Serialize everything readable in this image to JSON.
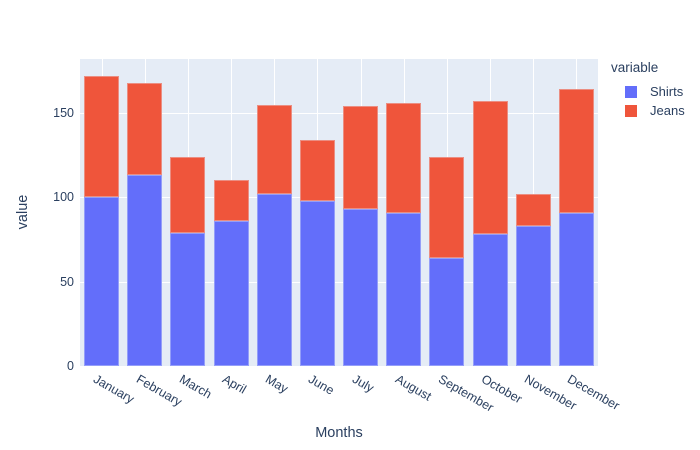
{
  "figure": {
    "paper_bgcolor": "#ffffff",
    "plot_bgcolor": "#E5ECF6",
    "grid_color": "#ffffff",
    "text_color": "#2a3f5f"
  },
  "axes": {
    "x_title": "Months",
    "y_title": "value",
    "y_ticks": [
      0,
      50,
      100,
      150
    ]
  },
  "legend": {
    "title": "variable",
    "items": [
      {
        "label": "Shirts",
        "color": "#636EFA"
      },
      {
        "label": "Jeans",
        "color": "#EF553B"
      }
    ]
  },
  "chart_data": {
    "type": "bar",
    "stacked": true,
    "orientation": "vertical",
    "title": "",
    "xlabel": "Months",
    "ylabel": "value",
    "ylim": [
      0,
      182
    ],
    "grid": true,
    "legend_position": "right",
    "legend_title": "variable",
    "categories": [
      "January",
      "February",
      "March",
      "April",
      "May",
      "June",
      "July",
      "August",
      "September",
      "October",
      "November",
      "December"
    ],
    "series": [
      {
        "name": "Shirts",
        "color": "#636EFA",
        "values": [
          100,
          113,
          79,
          86,
          102,
          98,
          93,
          91,
          64,
          78,
          83,
          91
        ]
      },
      {
        "name": "Jeans",
        "color": "#EF553B",
        "values": [
          72,
          55,
          45,
          24,
          53,
          36,
          61,
          65,
          60,
          79,
          19,
          73
        ]
      }
    ],
    "totals": [
      172,
      168,
      124,
      110,
      155,
      134,
      154,
      156,
      124,
      157,
      102,
      164
    ]
  }
}
